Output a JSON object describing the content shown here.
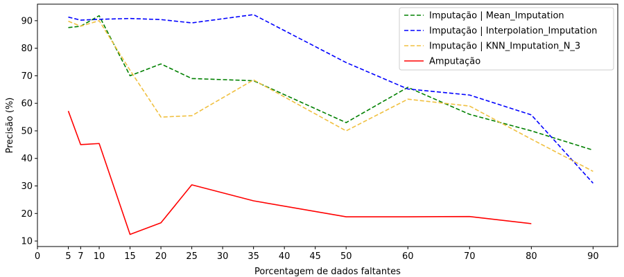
{
  "chart_data": {
    "type": "line",
    "xlabel": "Porcentagem de dados faltantes",
    "ylabel": "Precisão (%)",
    "xlim": [
      0,
      94
    ],
    "ylim": [
      8,
      96
    ],
    "xticks": [
      0,
      5,
      7,
      10,
      15,
      20,
      25,
      30,
      35,
      40,
      45,
      50,
      60,
      70,
      80,
      90
    ],
    "yticks": [
      10,
      20,
      30,
      40,
      50,
      60,
      70,
      80,
      90
    ],
    "legend_position": "top-right",
    "grid": false,
    "series": [
      {
        "name": "Imputação | Mean_Imputation",
        "color": "#008000",
        "dash": "dashed",
        "x": [
          5,
          7,
          10,
          15,
          20,
          25,
          35,
          50,
          60,
          70,
          80,
          90
        ],
        "y": [
          87.5,
          88,
          91.8,
          70,
          74.3,
          69,
          68.2,
          53,
          65.8,
          56,
          50,
          43
        ]
      },
      {
        "name": "Imputação | Interpolation_Imputation",
        "color": "#0000ff",
        "dash": "dashed",
        "x": [
          5,
          7,
          10,
          15,
          20,
          25,
          35,
          50,
          60,
          70,
          80,
          90
        ],
        "y": [
          91.3,
          90.2,
          90.5,
          90.8,
          90.4,
          89.2,
          92.2,
          74.8,
          65.2,
          63,
          55.8,
          31
        ]
      },
      {
        "name": "Imputação | KNN_Imputation_N_3",
        "color": "#f0c040",
        "dash": "dashed",
        "x": [
          5,
          7,
          10,
          15,
          20,
          25,
          35,
          50,
          60,
          70,
          80,
          90
        ],
        "y": [
          89.8,
          88,
          90,
          72,
          55,
          55.5,
          68.5,
          50,
          61.5,
          59,
          47,
          35.3
        ]
      },
      {
        "name": "Amputação",
        "color": "#ff0000",
        "dash": "solid",
        "x": [
          5,
          7,
          10,
          15,
          20,
          25,
          35,
          50,
          60,
          70,
          80
        ],
        "y": [
          57.2,
          45,
          45.4,
          12.4,
          16.6,
          30.4,
          24.6,
          18.8,
          18.8,
          18.9,
          16.3
        ]
      }
    ]
  }
}
